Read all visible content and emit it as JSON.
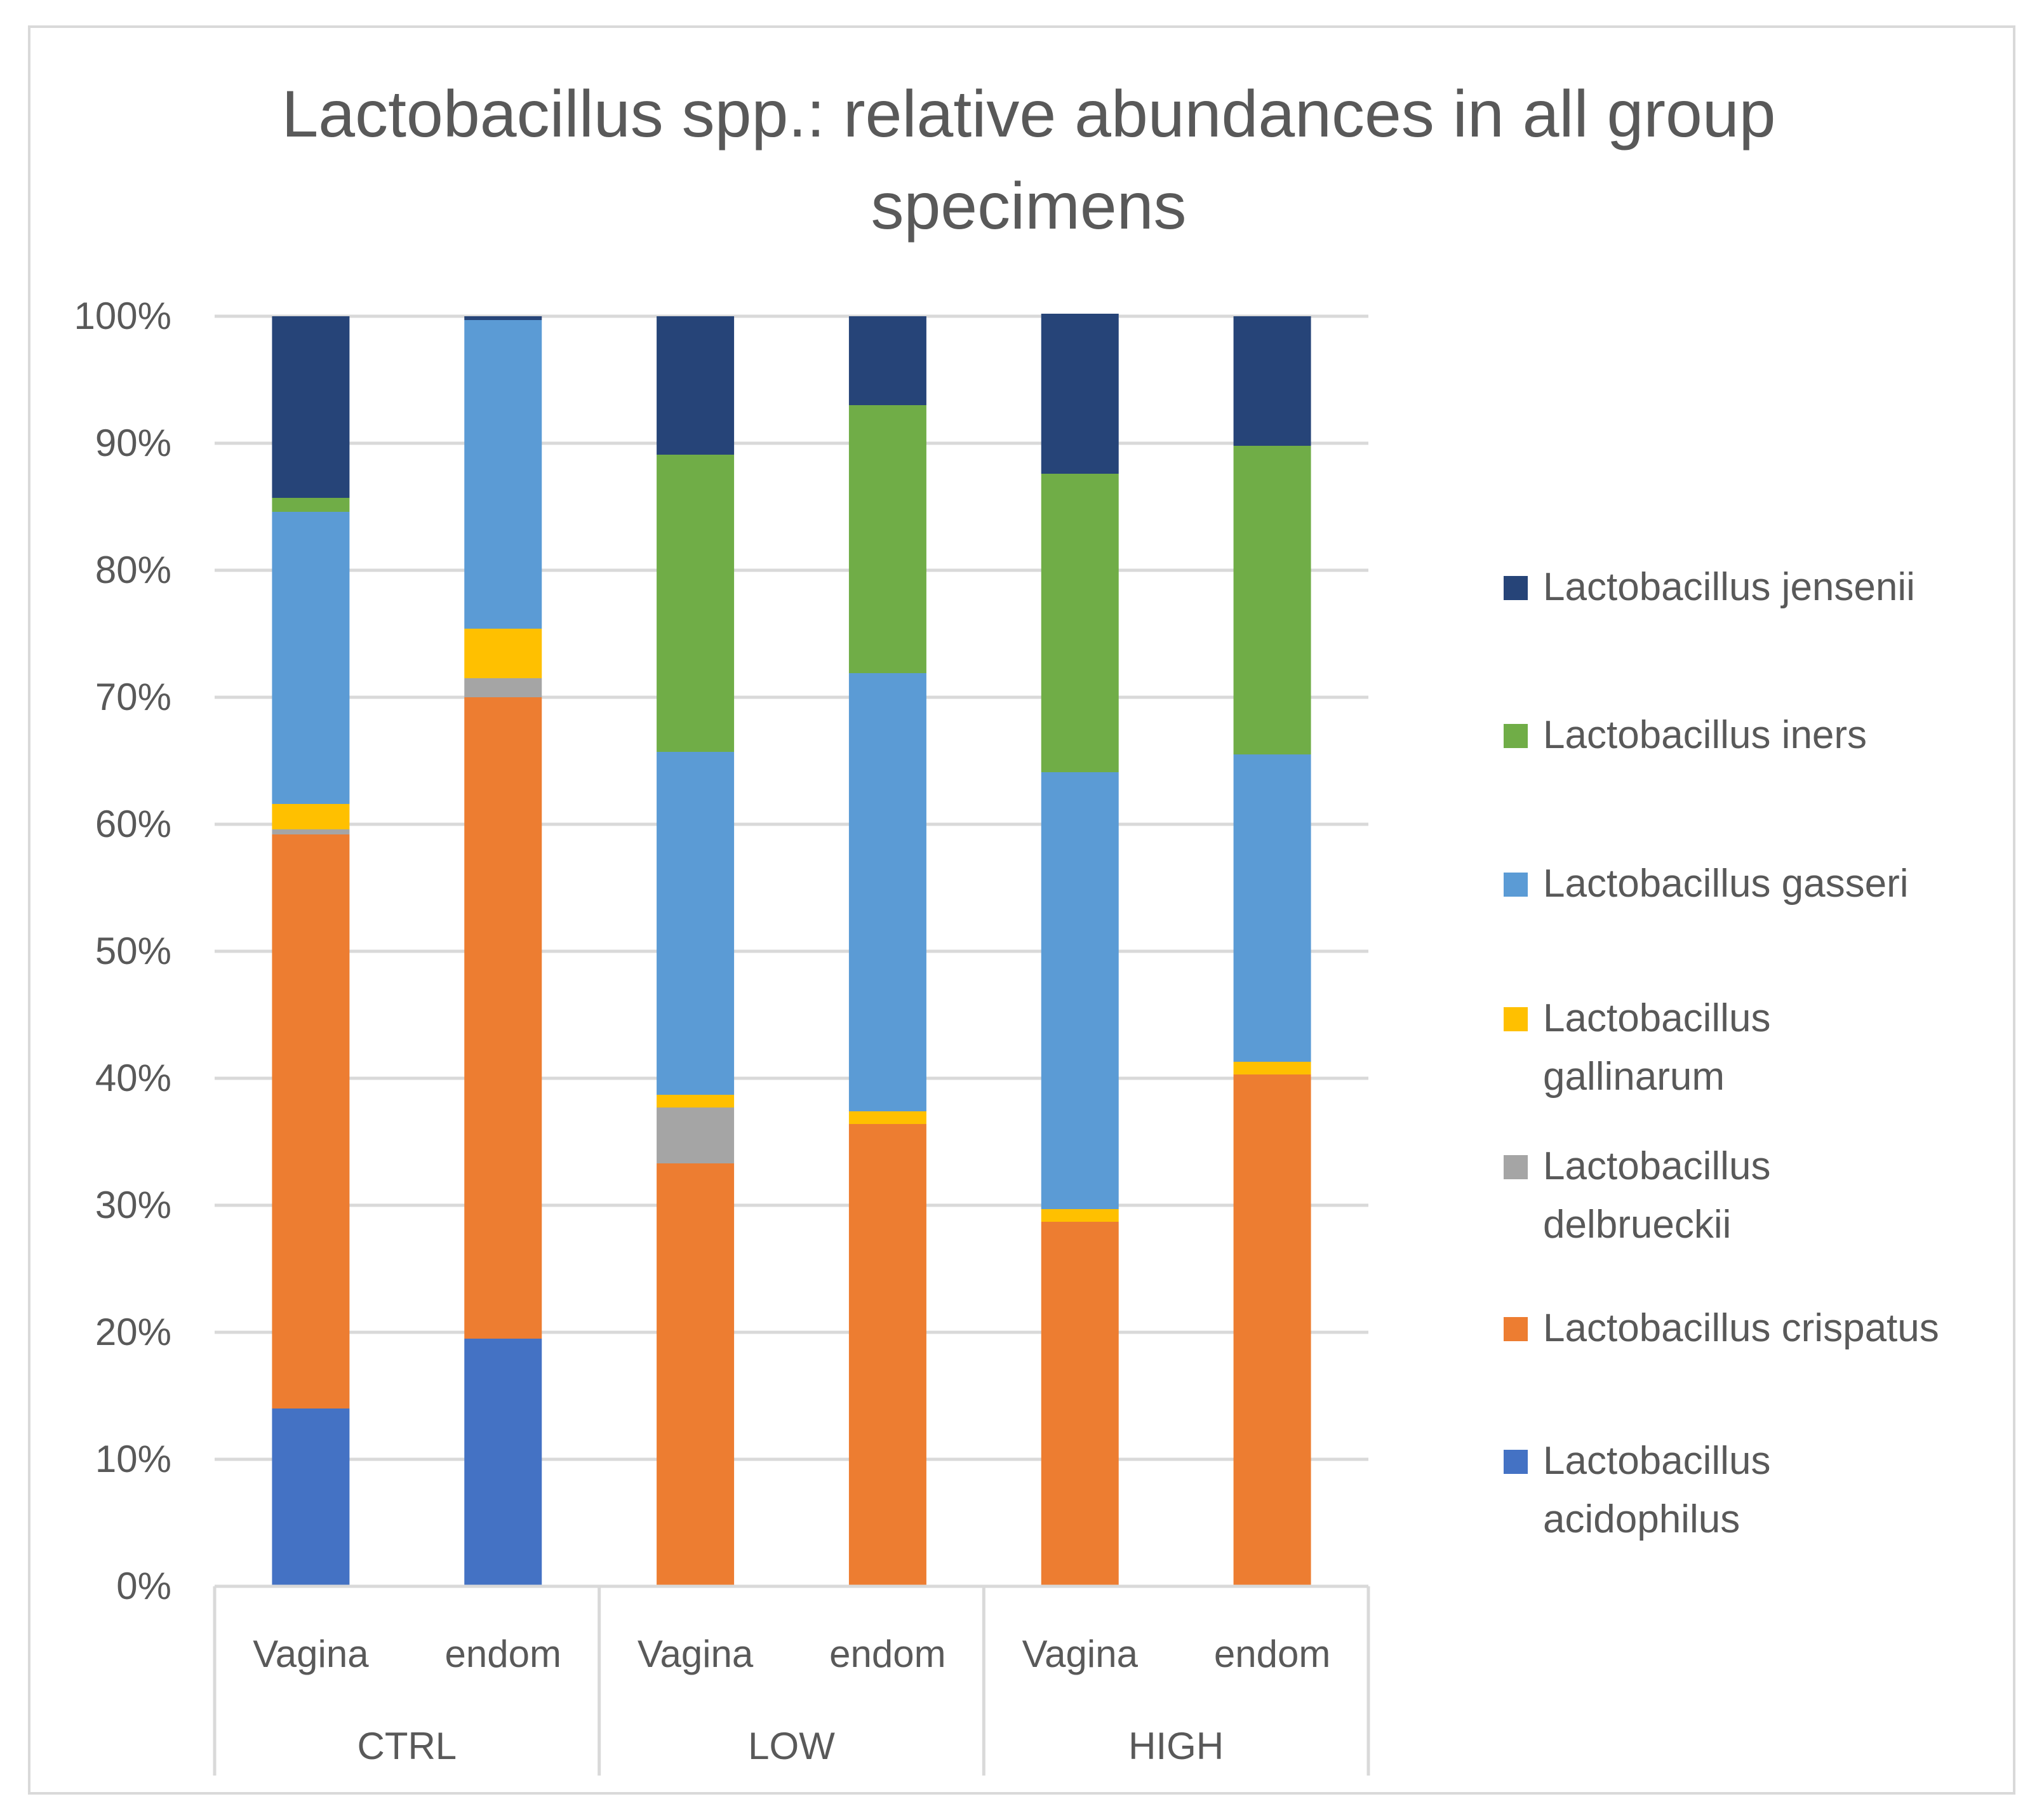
{
  "chart_data": {
    "type": "bar",
    "stacked": "percent",
    "title": "Lactobacillus spp.: relative abundances in all group specimens",
    "title_lines": [
      "Lactobacillus spp.: relative abundances in all group",
      "specimens"
    ],
    "xlabel": "",
    "ylabel": "",
    "ylim": [
      0,
      100
    ],
    "yticks": [
      "0%",
      "10%",
      "20%",
      "30%",
      "40%",
      "50%",
      "60%",
      "70%",
      "80%",
      "90%",
      "100%"
    ],
    "groups": [
      "CTRL",
      "LOW",
      "HIGH"
    ],
    "categories": [
      "Vagina",
      "endom",
      "Vagina",
      "endom",
      "Vagina",
      "endom"
    ],
    "legend_position": "right",
    "series": [
      {
        "name": "Lactobacillus acidophilus",
        "label_lines": [
          "Lactobacillus",
          "acidophilus"
        ],
        "color": "#4472c4",
        "values": [
          14.0,
          19.5,
          0,
          0,
          0,
          0
        ]
      },
      {
        "name": "Lactobacillus crispatus",
        "label_lines": [
          "Lactobacillus crispatus"
        ],
        "color": "#ed7d31",
        "values": [
          45.2,
          50.5,
          33.3,
          36.4,
          28.7,
          40.3
        ]
      },
      {
        "name": "Lactobacillus delbrueckii",
        "label_lines": [
          "Lactobacillus",
          "delbrueckii"
        ],
        "color": "#a5a5a5",
        "values": [
          0.4,
          1.5,
          4.4,
          0,
          0,
          0
        ]
      },
      {
        "name": "Lactobacillus gallinarum",
        "label_lines": [
          "Lactobacillus",
          "gallinarum"
        ],
        "color": "#ffc000",
        "values": [
          2.0,
          3.9,
          1.0,
          1.0,
          1.0,
          1.0
        ]
      },
      {
        "name": "Lactobacillus gasseri",
        "label_lines": [
          "Lactobacillus gasseri"
        ],
        "color": "#5b9bd5",
        "values": [
          23.0,
          24.3,
          27.0,
          34.5,
          34.4,
          24.2
        ]
      },
      {
        "name": "Lactobacillus iners",
        "label_lines": [
          "Lactobacillus iners"
        ],
        "color": "#70ad47",
        "values": [
          1.1,
          0,
          23.4,
          21.1,
          23.5,
          24.3
        ]
      },
      {
        "name": "Lactobacillus jensenii",
        "label_lines": [
          "Lactobacillus jensenii"
        ],
        "color": "#264478",
        "values": [
          14.3,
          0.3,
          10.9,
          7.0,
          12.6,
          10.2
        ]
      }
    ]
  }
}
